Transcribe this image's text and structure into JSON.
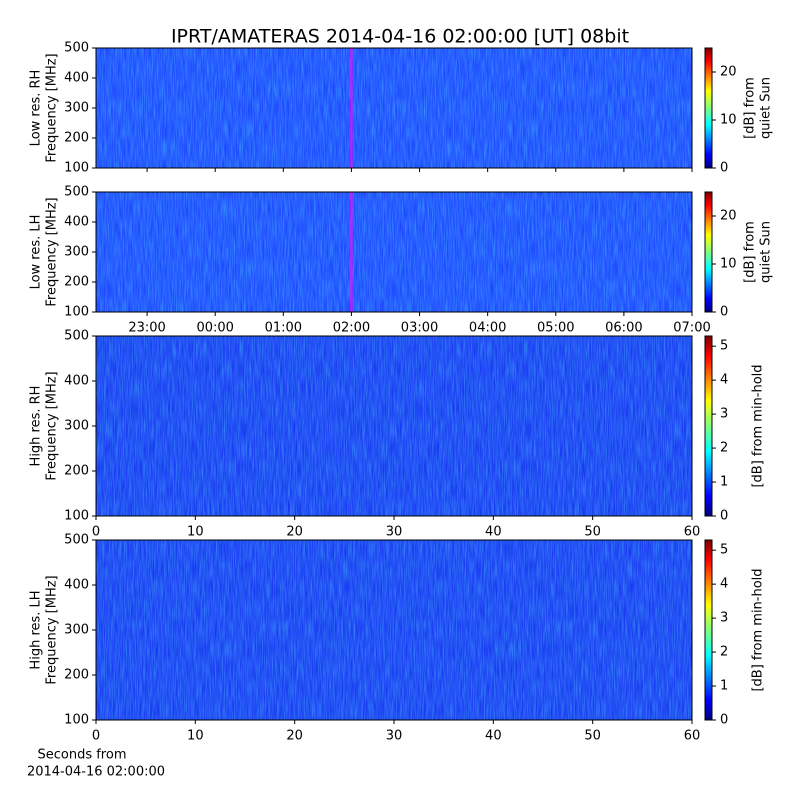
{
  "title": "IPRT/AMATERAS 2014-04-16 02:00:00 [UT]   08bit",
  "chart_data": [
    {
      "type": "heatmap",
      "colormap": "jet",
      "ylabel": [
        "Low res. RH",
        "Frequency [MHz]"
      ],
      "ylim": [
        100,
        500
      ],
      "yticks": [
        100,
        200,
        300,
        400,
        500
      ],
      "xlim": [
        -1.75,
        7
      ],
      "xticks": [
        -1,
        0,
        1,
        2,
        3,
        4,
        5,
        6,
        7
      ],
      "marker_x": 2,
      "marker_color": "#ff00ff",
      "clim": [
        0,
        25
      ],
      "cticks": [
        0,
        10,
        20
      ],
      "clabel": [
        "[dB] from",
        "quiet Sun"
      ]
    },
    {
      "type": "heatmap",
      "colormap": "jet",
      "ylabel": [
        "Low res. LH",
        "Frequency [MHz]"
      ],
      "ylim": [
        100,
        500
      ],
      "yticks": [
        100,
        200,
        300,
        400,
        500
      ],
      "xlim": [
        -1.75,
        7
      ],
      "xticks": [
        {
          "value": -1,
          "label": "23:00"
        },
        {
          "value": 0,
          "label": "00:00"
        },
        {
          "value": 1,
          "label": "01:00"
        },
        {
          "value": 2,
          "label": "02:00"
        },
        {
          "value": 3,
          "label": "03:00"
        },
        {
          "value": 4,
          "label": "04:00"
        },
        {
          "value": 5,
          "label": "05:00"
        },
        {
          "value": 6,
          "label": "06:00"
        },
        {
          "value": 7,
          "label": "07:00"
        }
      ],
      "marker_x": 2,
      "marker_color": "#ff00ff",
      "clim": [
        0,
        25
      ],
      "cticks": [
        0,
        10,
        20
      ],
      "clabel": [
        "[dB] from",
        "quiet Sun"
      ]
    },
    {
      "type": "heatmap",
      "colormap": "jet",
      "ylabel": [
        "High res. RH",
        "Frequency [MHz]"
      ],
      "ylim": [
        100,
        500
      ],
      "yticks": [
        100,
        200,
        300,
        400,
        500
      ],
      "xlim": [
        0,
        60
      ],
      "xticks": [
        0,
        10,
        20,
        30,
        40,
        50,
        60
      ],
      "clim": [
        0,
        5.3
      ],
      "cticks": [
        0,
        1,
        2,
        3,
        4,
        5
      ],
      "clabel": [
        "[dB] from min-hold"
      ]
    },
    {
      "type": "heatmap",
      "colormap": "jet",
      "ylabel": [
        "High res. LH",
        "Frequency [MHz]"
      ],
      "ylim": [
        100,
        500
      ],
      "yticks": [
        100,
        200,
        300,
        400,
        500
      ],
      "xlim": [
        0,
        60
      ],
      "xticks": [
        0,
        10,
        20,
        30,
        40,
        50,
        60
      ],
      "xlabel": [
        "Seconds from",
        "2014-04-16 02:00:00"
      ],
      "clim": [
        0,
        5.3
      ],
      "cticks": [
        0,
        1,
        2,
        3,
        4,
        5
      ],
      "clabel": [
        "[dB] from min-hold"
      ]
    }
  ]
}
